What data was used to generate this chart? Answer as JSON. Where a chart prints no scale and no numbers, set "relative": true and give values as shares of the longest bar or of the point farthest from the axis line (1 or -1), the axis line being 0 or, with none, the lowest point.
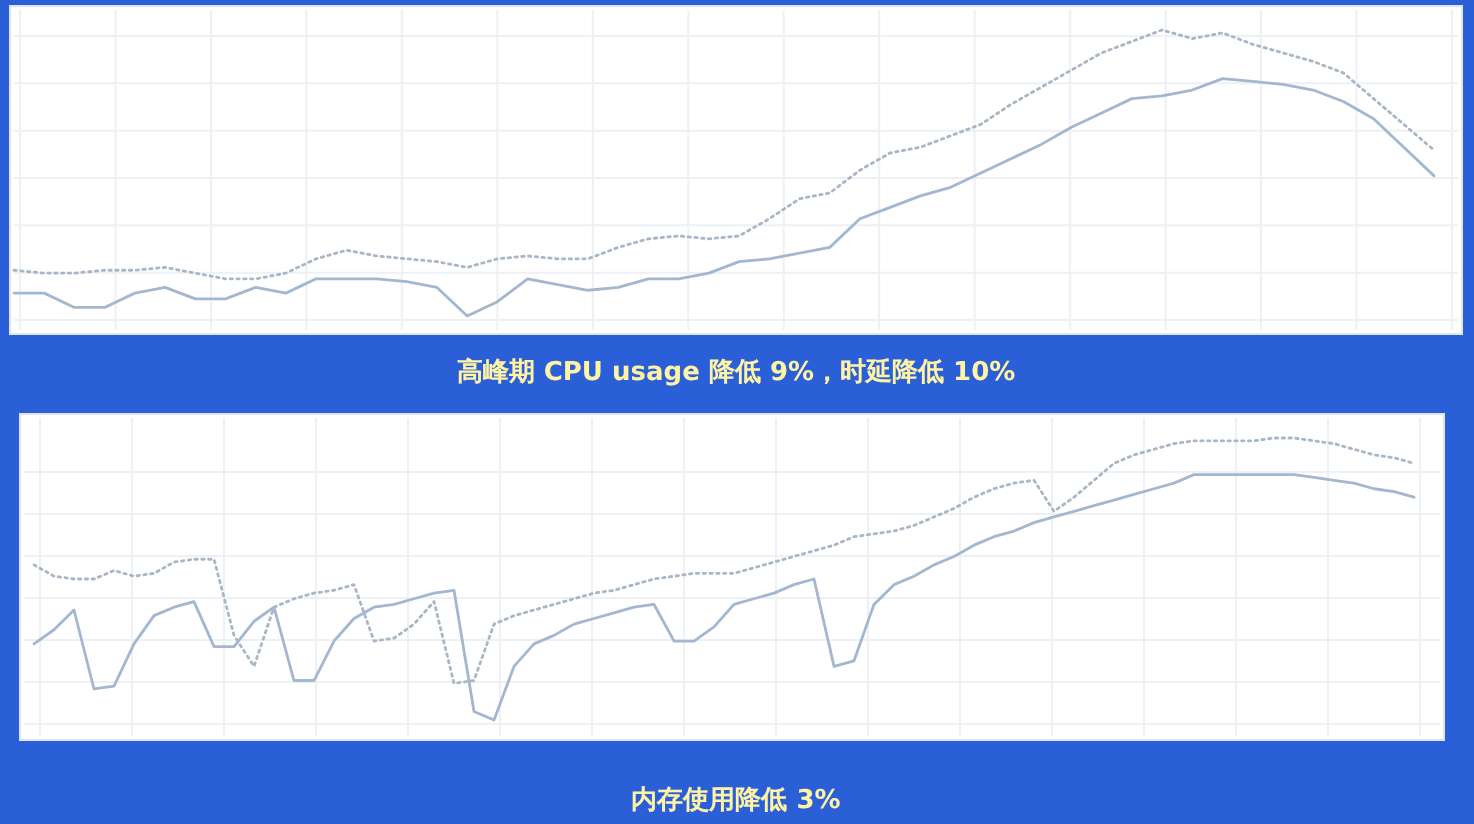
{
  "chart_data": [
    {
      "type": "line",
      "title": "高峰期 CPU usage 降低 9%，时延降低 10%",
      "relative": true,
      "grid": true,
      "categories": [
        null,
        null,
        null,
        null,
        null,
        null,
        null,
        null,
        null,
        null,
        null,
        null,
        null,
        null,
        null,
        null,
        null,
        null,
        null,
        null,
        null,
        null,
        null,
        null,
        null,
        null,
        null,
        null,
        null,
        null,
        null,
        null,
        null,
        null,
        null,
        null,
        null,
        null,
        null,
        null,
        null,
        null,
        null,
        null,
        null,
        null,
        null,
        null
      ],
      "series": [
        {
          "color": "#a9b6c6",
          "line_style": "dotted",
          "values": [
            0.16,
            0.15,
            0.15,
            0.16,
            0.16,
            0.17,
            0.15,
            0.13,
            0.13,
            0.15,
            0.2,
            0.23,
            0.21,
            0.2,
            0.19,
            0.17,
            0.2,
            0.21,
            0.2,
            0.2,
            0.24,
            0.27,
            0.28,
            0.27,
            0.28,
            0.34,
            0.41,
            0.43,
            0.51,
            0.57,
            0.59,
            0.63,
            0.67,
            0.74,
            0.8,
            0.86,
            0.92,
            0.96,
            1,
            0.97,
            0.99,
            0.95,
            0.92,
            0.89,
            0.85,
            0.76,
            0.67,
            0.58
          ]
        },
        {
          "color": "#a3b7cf",
          "line_style": "solid",
          "values": [
            0.08,
            0.08,
            0.03,
            0.03,
            0.08,
            0.1,
            0.06,
            0.06,
            0.1,
            0.08,
            0.13,
            0.13,
            0.13,
            0.12,
            0.1,
            0,
            0.05,
            0.13,
            0.11,
            0.09,
            0.1,
            0.13,
            0.13,
            0.15,
            0.19,
            0.2,
            0.22,
            0.24,
            0.34,
            0.38,
            0.42,
            0.45,
            0.5,
            0.55,
            0.6,
            0.66,
            0.71,
            0.76,
            0.77,
            0.79,
            0.83,
            0.82,
            0.81,
            0.79,
            0.75,
            0.69,
            0.59,
            0.49
          ]
        }
      ]
    },
    {
      "type": "line",
      "title": "内存使用降低 3%",
      "relative": true,
      "grid": true,
      "categories": [
        null,
        null,
        null,
        null,
        null,
        null,
        null,
        null,
        null,
        null,
        null,
        null,
        null,
        null,
        null,
        null,
        null,
        null,
        null,
        null,
        null,
        null,
        null,
        null,
        null,
        null,
        null,
        null,
        null,
        null,
        null,
        null,
        null,
        null,
        null,
        null,
        null,
        null,
        null,
        null,
        null,
        null,
        null,
        null,
        null,
        null,
        null,
        null,
        null,
        null,
        null,
        null,
        null,
        null,
        null,
        null,
        null,
        null,
        null,
        null,
        null,
        null,
        null,
        null,
        null,
        null,
        null,
        null,
        null,
        null
      ],
      "series": [
        {
          "color": "#a9b6c6",
          "line_style": "dotted",
          "values": [
            0.55,
            0.51,
            0.5,
            0.5,
            0.53,
            0.51,
            0.52,
            0.56,
            0.57,
            0.57,
            0.3,
            0.19,
            0.4,
            0.43,
            0.45,
            0.46,
            0.48,
            0.28,
            0.29,
            0.34,
            0.42,
            0.13,
            0.14,
            0.34,
            0.37,
            0.39,
            0.41,
            0.43,
            0.45,
            0.46,
            0.48,
            0.5,
            0.51,
            0.52,
            0.52,
            0.52,
            0.54,
            0.56,
            0.58,
            0.6,
            0.62,
            0.65,
            0.66,
            0.67,
            0.69,
            0.72,
            0.75,
            0.79,
            0.82,
            0.84,
            0.85,
            0.74,
            0.79,
            0.85,
            0.91,
            0.94,
            0.96,
            0.98,
            0.99,
            0.99,
            0.99,
            0.99,
            1,
            1,
            0.99,
            0.98,
            0.96,
            0.94,
            0.93,
            0.91
          ]
        },
        {
          "color": "#a3b7cf",
          "line_style": "solid",
          "values": [
            0.27,
            0.32,
            0.39,
            0.11,
            0.12,
            0.27,
            0.37,
            0.4,
            0.42,
            0.26,
            0.26,
            0.35,
            0.4,
            0.14,
            0.14,
            0.28,
            0.36,
            0.4,
            0.41,
            0.43,
            0.45,
            0.46,
            0.03,
            0,
            0.19,
            0.27,
            0.3,
            0.34,
            0.36,
            0.38,
            0.4,
            0.41,
            0.28,
            0.28,
            0.33,
            0.41,
            0.43,
            0.45,
            0.48,
            0.5,
            0.19,
            0.21,
            0.41,
            0.48,
            0.51,
            0.55,
            0.58,
            0.62,
            0.65,
            0.67,
            0.7,
            0.72,
            0.74,
            0.76,
            0.78,
            0.8,
            0.82,
            0.84,
            0.87,
            0.87,
            0.87,
            0.87,
            0.87,
            0.87,
            0.86,
            0.85,
            0.84,
            0.82,
            0.81,
            0.79
          ]
        }
      ]
    }
  ]
}
